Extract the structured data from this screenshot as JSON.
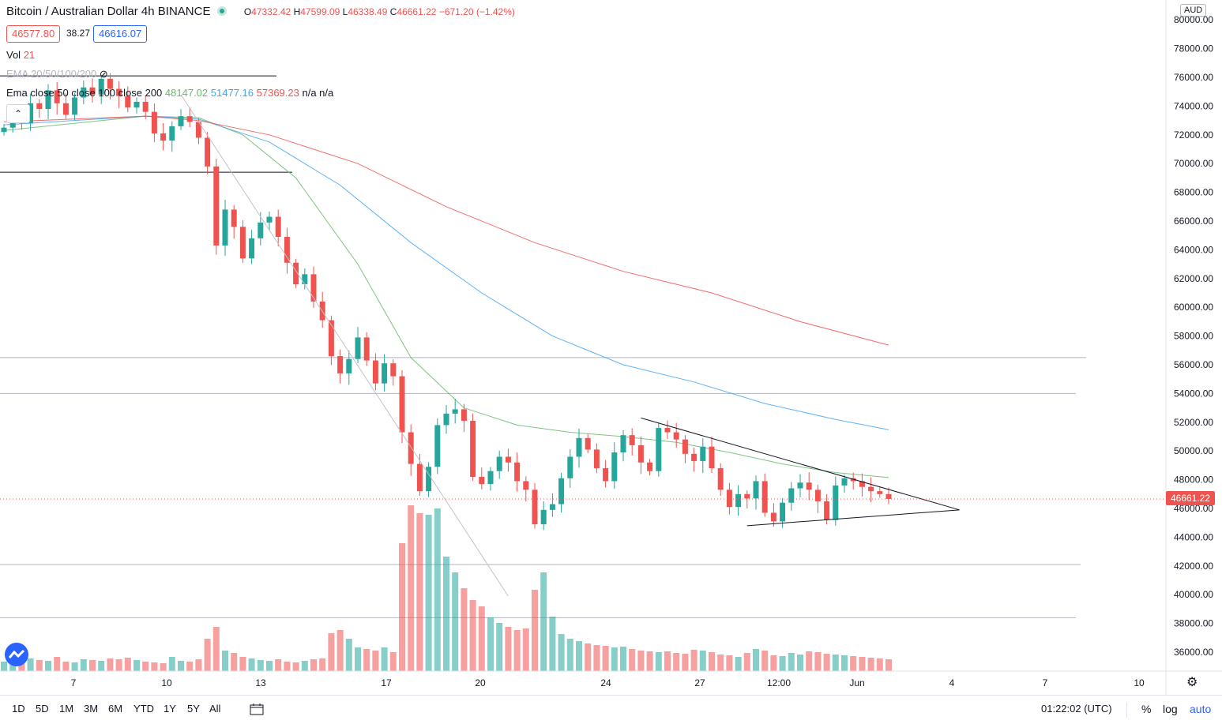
{
  "header": {
    "symbol_title": "Bitcoin / Australian Dollar",
    "interval": "4h",
    "exchange": "BINANCE",
    "ohlc": {
      "o_label": "O",
      "o": "47332.42",
      "h_label": "H",
      "h": "47599.09",
      "l_label": "L",
      "l": "46338.49",
      "c_label": "C",
      "c": "46661.22",
      "change": "−671.20 (−1.42%)"
    },
    "bid": "46577.80",
    "spread": "38.27",
    "ask": "46616.07"
  },
  "indicators": {
    "vol_label": "Vol",
    "vol_value": "21",
    "ema_hidden": "EMA 20/50/100/200",
    "ema_label": "Ema close 50 close 100 close 200",
    "ema50": "48147.02",
    "ema100": "51477.16",
    "ema200": "57369.23",
    "na": "n/a n/a"
  },
  "price_axis": {
    "currency": "AUD",
    "ticks": [
      "80000.00",
      "78000.00",
      "76000.00",
      "74000.00",
      "72000.00",
      "70000.00",
      "68000.00",
      "66000.00",
      "64000.00",
      "62000.00",
      "60000.00",
      "58000.00",
      "56000.00",
      "54000.00",
      "52000.00",
      "50000.00",
      "48000.00",
      "46000.00",
      "44000.00",
      "42000.00",
      "40000.00",
      "38000.00",
      "36000.00"
    ],
    "last_price": "46661.22"
  },
  "time_axis": {
    "ticks": [
      "7",
      "10",
      "13",
      "17",
      "20",
      "24",
      "27",
      "12:00",
      "Jun",
      "4",
      "7",
      "10"
    ]
  },
  "bottom_bar": {
    "ranges": [
      "1D",
      "5D",
      "1M",
      "3M",
      "6M",
      "YTD",
      "1Y",
      "5Y",
      "All"
    ],
    "clock": "01:22:02 (UTC)",
    "percent": "%",
    "log": "log",
    "auto": "auto"
  },
  "colors": {
    "up": "#26a69a",
    "down": "#ef5350",
    "ema50": "#66bb6a",
    "ema100": "#42a5f5",
    "ema200": "#ef5350",
    "accent": "#2962ff"
  },
  "chart_data": {
    "type": "candlestick",
    "title": "Bitcoin / Australian Dollar",
    "x_ticks": [
      "7",
      "10",
      "13",
      "17",
      "20",
      "24",
      "27",
      "12:00",
      "Jun",
      "4",
      "7",
      "10"
    ],
    "ylim": [
      35000,
      80800
    ],
    "y_ticks": [
      36000,
      38000,
      40000,
      42000,
      44000,
      46000,
      48000,
      50000,
      52000,
      54000,
      56000,
      58000,
      60000,
      62000,
      64000,
      66000,
      68000,
      70000,
      72000,
      74000,
      76000,
      78000,
      80000
    ],
    "close_path": [
      72500,
      73200,
      72800,
      74200,
      73800,
      75100,
      74200,
      73400,
      74600,
      75300,
      74800,
      75900,
      75200,
      74700,
      73900,
      74300,
      73600,
      72100,
      71600,
      72600,
      73300,
      72900,
      71800,
      69800,
      64300,
      66800,
      65600,
      63400,
      64800,
      65900,
      66300,
      64900,
      63100,
      61600,
      62300,
      60400,
      59100,
      56600,
      55400,
      56400,
      57900,
      56300,
      54700,
      56100,
      55200,
      51300,
      49100,
      47200,
      48900,
      51800,
      52600,
      52900,
      52100,
      48200,
      47700,
      48600,
      49600,
      49200,
      47900,
      47300,
      44900,
      45900,
      46300,
      48100,
      49600,
      50900,
      50100,
      48800,
      47900,
      49900,
      51100,
      50400,
      49200,
      48600,
      51600,
      51300,
      50800,
      49800,
      49300,
      50300,
      48800,
      47300,
      46100,
      47000,
      46700,
      47900,
      45700,
      45100,
      46400,
      47400,
      47800,
      47300,
      46500,
      45200,
      47600,
      48100,
      47900,
      47500,
      47200,
      47000,
      46661
    ],
    "volume": [
      120,
      150,
      110,
      160,
      140,
      130,
      180,
      120,
      110,
      150,
      140,
      130,
      160,
      150,
      170,
      140,
      120,
      110,
      100,
      180,
      130,
      120,
      150,
      410,
      560,
      260,
      230,
      180,
      160,
      140,
      130,
      150,
      120,
      110,
      130,
      150,
      160,
      480,
      520,
      410,
      300,
      280,
      260,
      300,
      240,
      1620,
      2100,
      2000,
      1980,
      2060,
      1450,
      1250,
      1050,
      900,
      820,
      680,
      610,
      560,
      520,
      540,
      1030,
      1250,
      690,
      470,
      410,
      380,
      350,
      330,
      320,
      300,
      310,
      280,
      260,
      250,
      240,
      250,
      230,
      220,
      270,
      260,
      240,
      210,
      200,
      180,
      230,
      280,
      260,
      200,
      190,
      230,
      210,
      250,
      240,
      220,
      210,
      200,
      190,
      180,
      170,
      160,
      150
    ],
    "ema50": {
      "from": [
        0,
        72300
      ],
      "points": [
        [
          16,
          73300
        ],
        [
          22,
          73200
        ],
        [
          27,
          72000
        ],
        [
          33,
          69000
        ],
        [
          40,
          63000
        ],
        [
          46,
          56500
        ],
        [
          52,
          53000
        ],
        [
          58,
          51800
        ],
        [
          64,
          51300
        ],
        [
          70,
          51000
        ],
        [
          76,
          50600
        ],
        [
          82,
          49900
        ],
        [
          88,
          49100
        ],
        [
          94,
          48500
        ],
        [
          100,
          48147
        ]
      ]
    },
    "ema100": {
      "from": [
        0,
        72700
      ],
      "points": [
        [
          16,
          73300
        ],
        [
          22,
          73100
        ],
        [
          30,
          71500
        ],
        [
          38,
          68500
        ],
        [
          46,
          64500
        ],
        [
          54,
          61000
        ],
        [
          62,
          58000
        ],
        [
          70,
          56000
        ],
        [
          78,
          54800
        ],
        [
          86,
          53300
        ],
        [
          94,
          52200
        ],
        [
          100,
          51477
        ]
      ]
    },
    "ema200": {
      "from": [
        0,
        72900
      ],
      "points": [
        [
          16,
          73300
        ],
        [
          22,
          73000
        ],
        [
          30,
          72000
        ],
        [
          40,
          70000
        ],
        [
          50,
          67000
        ],
        [
          60,
          64500
        ],
        [
          70,
          62500
        ],
        [
          80,
          61000
        ],
        [
          90,
          59000
        ],
        [
          100,
          57369
        ]
      ]
    },
    "horizontal_levels": [
      76100,
      69400,
      56500,
      54000,
      42100,
      38400
    ],
    "trendlines": [
      {
        "from": [
          20,
          74800
        ],
        "to": [
          57,
          39900
        ]
      },
      {
        "from": [
          72,
          52300
        ],
        "to": [
          108,
          45900
        ]
      },
      {
        "from": [
          84,
          44800
        ],
        "to": [
          108,
          45900
        ]
      }
    ]
  }
}
